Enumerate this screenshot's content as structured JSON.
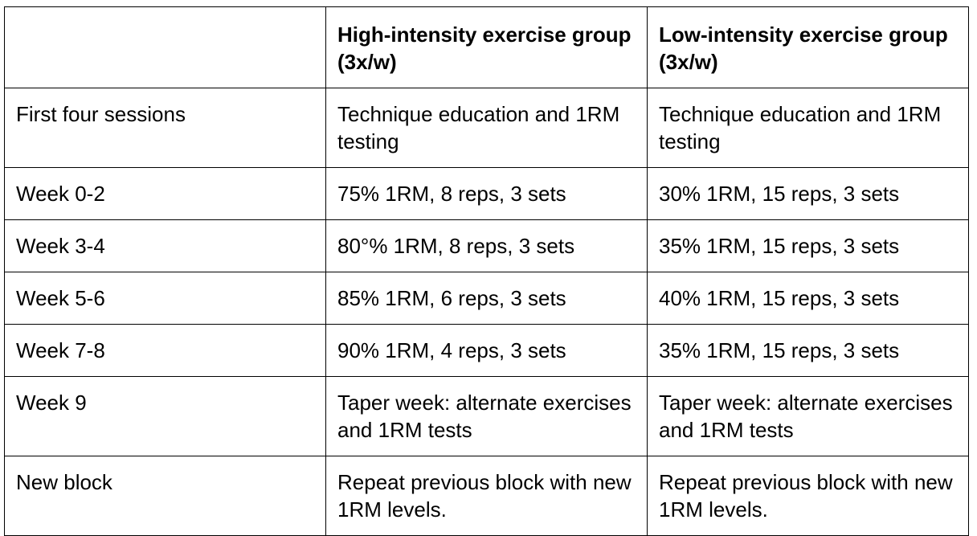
{
  "table": {
    "header": [
      "High-intensity exercise group (3x/w)",
      "Low-intensity exercise group (3x/w)"
    ],
    "rows": [
      [
        "First four sessions",
        "Technique education and 1RM testing",
        "Technique education and 1RM testing"
      ],
      [
        "Week 0-2",
        "75% 1RM, 8 reps, 3 sets",
        "30% 1RM, 15 reps, 3 sets"
      ],
      [
        "Week 3-4",
        "80°% 1RM, 8 reps, 3 sets",
        "35% 1RM, 15 reps, 3 sets"
      ],
      [
        "Week 5-6",
        "85% 1RM, 6 reps, 3 sets",
        "40% 1RM, 15 reps, 3 sets"
      ],
      [
        "Week 7-8",
        "90% 1RM, 4 reps, 3 sets",
        "35% 1RM, 15 reps, 3 sets"
      ],
      [
        "Week 9",
        "Taper week: alternate exercises and 1RM tests",
        "Taper week: alternate exercises and 1RM tests"
      ],
      [
        "New block",
        "Repeat previous block with new 1RM levels.",
        "Repeat previous block with new 1RM levels."
      ]
    ]
  }
}
